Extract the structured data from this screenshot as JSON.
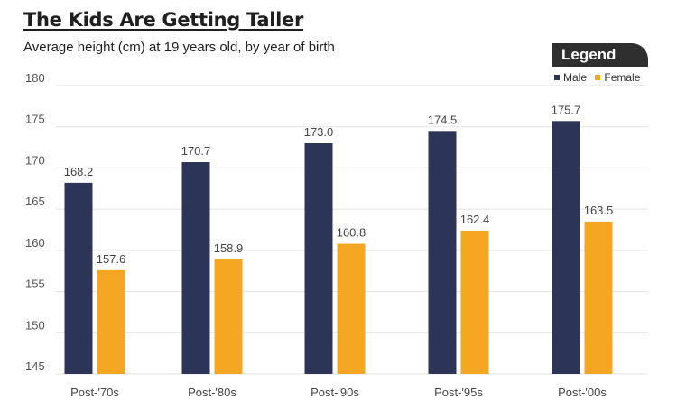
{
  "chart_data": {
    "type": "bar",
    "title": "The Kids Are Getting Taller",
    "subtitle": "Average height (cm) at 19 years old, by year of birth",
    "categories": [
      "Post-'70s",
      "Post-'80s",
      "Post-'90s",
      "Post-'95s",
      "Post-'00s"
    ],
    "series": [
      {
        "name": "Male",
        "color": "#2c3558",
        "values": [
          168.2,
          170.7,
          173.0,
          174.5,
          175.7
        ],
        "labels": [
          "168.2",
          "170.7",
          "173.0",
          "174.5",
          "175.7"
        ]
      },
      {
        "name": "Female",
        "color": "#f5a623",
        "values": [
          157.6,
          158.9,
          160.8,
          162.4,
          163.5
        ],
        "labels": [
          "157.6",
          "158.9",
          "160.8",
          "162.4",
          "163.5"
        ]
      }
    ],
    "ylim": [
      145,
      180
    ],
    "yticks": [
      145,
      150,
      155,
      160,
      165,
      170,
      175,
      180
    ],
    "grid": true,
    "legend": {
      "title": "Legend",
      "placement": "top-right"
    }
  }
}
